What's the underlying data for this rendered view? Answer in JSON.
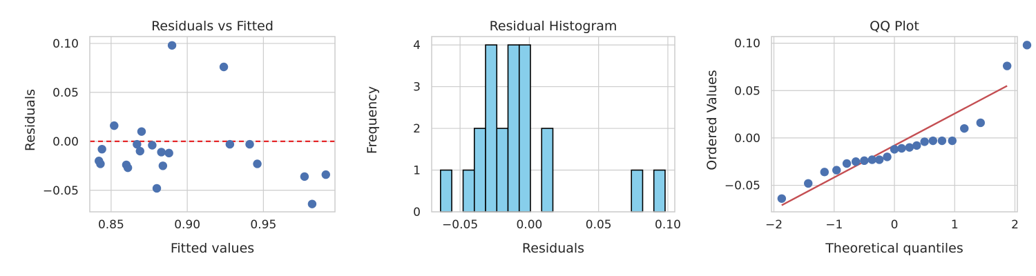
{
  "chart_data": [
    {
      "type": "scatter",
      "title": "Residuals vs Fitted",
      "xlabel": "Fitted values",
      "ylabel": "Residuals",
      "xlim": [
        0.836,
        0.997
      ],
      "ylim": [
        -0.072,
        0.107
      ],
      "xticks": [
        0.85,
        0.9,
        0.95
      ],
      "xtick_labels": [
        "0.85",
        "0.90",
        "0.95"
      ],
      "yticks": [
        -0.05,
        0.0,
        0.05,
        0.1
      ],
      "ytick_labels": [
        "−0.05",
        "0.00",
        "0.05",
        "0.10"
      ],
      "grid": true,
      "point_color": "#4c72b0",
      "reference_line": {
        "y": 0,
        "color": "#e31a1c",
        "style": "dashed"
      },
      "points": [
        {
          "x": 0.842,
          "y": -0.02
        },
        {
          "x": 0.843,
          "y": -0.023
        },
        {
          "x": 0.844,
          "y": -0.008
        },
        {
          "x": 0.852,
          "y": 0.016
        },
        {
          "x": 0.86,
          "y": -0.024
        },
        {
          "x": 0.861,
          "y": -0.027
        },
        {
          "x": 0.867,
          "y": -0.003
        },
        {
          "x": 0.869,
          "y": -0.01
        },
        {
          "x": 0.87,
          "y": 0.01
        },
        {
          "x": 0.877,
          "y": -0.004
        },
        {
          "x": 0.88,
          "y": -0.048
        },
        {
          "x": 0.883,
          "y": -0.011
        },
        {
          "x": 0.884,
          "y": -0.025
        },
        {
          "x": 0.888,
          "y": -0.012
        },
        {
          "x": 0.89,
          "y": 0.098
        },
        {
          "x": 0.924,
          "y": 0.076
        },
        {
          "x": 0.928,
          "y": -0.003
        },
        {
          "x": 0.941,
          "y": -0.003
        },
        {
          "x": 0.946,
          "y": -0.023
        },
        {
          "x": 0.977,
          "y": -0.036
        },
        {
          "x": 0.982,
          "y": -0.064
        },
        {
          "x": 0.991,
          "y": -0.034
        }
      ]
    },
    {
      "type": "bar",
      "title": "Residual Histogram",
      "xlabel": "Residuals",
      "ylabel": "Frequency",
      "xlim": [
        -0.0705,
        0.105
      ],
      "ylim": [
        0,
        4.2
      ],
      "xticks": [
        -0.05,
        0.0,
        0.05,
        0.1
      ],
      "xtick_labels": [
        "−0.05",
        "0.00",
        "0.05",
        "0.10"
      ],
      "yticks": [
        0,
        1,
        2,
        3,
        4
      ],
      "ytick_labels": [
        "0",
        "1",
        "2",
        "3",
        "4"
      ],
      "grid": true,
      "bar_color": "#87ceeb",
      "edge_color": "#000000",
      "bins": [
        {
          "start": -0.0641,
          "end": -0.056,
          "count": 1
        },
        {
          "start": -0.056,
          "end": -0.0478,
          "count": 0
        },
        {
          "start": -0.0478,
          "end": -0.0397,
          "count": 1
        },
        {
          "start": -0.0397,
          "end": -0.0316,
          "count": 2
        },
        {
          "start": -0.0316,
          "end": -0.0235,
          "count": 4
        },
        {
          "start": -0.0235,
          "end": -0.0154,
          "count": 2
        },
        {
          "start": -0.0154,
          "end": -0.0073,
          "count": 4
        },
        {
          "start": -0.0073,
          "end": 0.0008,
          "count": 4
        },
        {
          "start": 0.0008,
          "end": 0.0089,
          "count": 0
        },
        {
          "start": 0.0089,
          "end": 0.017,
          "count": 2
        },
        {
          "start": 0.017,
          "end": 0.0251,
          "count": 0
        },
        {
          "start": 0.0251,
          "end": 0.0332,
          "count": 0
        },
        {
          "start": 0.0332,
          "end": 0.0413,
          "count": 0
        },
        {
          "start": 0.0413,
          "end": 0.0494,
          "count": 0
        },
        {
          "start": 0.0494,
          "end": 0.0575,
          "count": 0
        },
        {
          "start": 0.0575,
          "end": 0.0656,
          "count": 0
        },
        {
          "start": 0.0656,
          "end": 0.0737,
          "count": 0
        },
        {
          "start": 0.0737,
          "end": 0.0818,
          "count": 1
        },
        {
          "start": 0.0818,
          "end": 0.0899,
          "count": 0
        },
        {
          "start": 0.0899,
          "end": 0.098,
          "count": 1
        }
      ]
    },
    {
      "type": "scatter",
      "title": "QQ Plot",
      "xlabel": "Theoretical quantiles",
      "ylabel": "Ordered Values",
      "xlim": [
        -2.04,
        2.04
      ],
      "ylim": [
        -0.078,
        0.107
      ],
      "xticks": [
        -2,
        -1,
        0,
        1,
        2
      ],
      "xtick_labels": [
        "−2",
        "−1",
        "0",
        "1",
        "2"
      ],
      "yticks": [
        -0.05,
        0.0,
        0.05,
        0.1
      ],
      "ytick_labels": [
        "−0.05",
        "0.00",
        "0.05",
        "0.10"
      ],
      "grid": true,
      "point_color": "#4c72b0",
      "fit_line": {
        "x": [
          -1.87,
          1.87
        ],
        "y": [
          -0.071,
          0.055
        ],
        "color": "#c44e52"
      },
      "points": [
        {
          "x": -1.87,
          "y": -0.064
        },
        {
          "x": -1.43,
          "y": -0.048
        },
        {
          "x": -1.16,
          "y": -0.036
        },
        {
          "x": -0.96,
          "y": -0.034
        },
        {
          "x": -0.79,
          "y": -0.027
        },
        {
          "x": -0.64,
          "y": -0.025
        },
        {
          "x": -0.5,
          "y": -0.024
        },
        {
          "x": -0.37,
          "y": -0.023
        },
        {
          "x": -0.25,
          "y": -0.023
        },
        {
          "x": -0.12,
          "y": -0.02
        },
        {
          "x": 0.0,
          "y": -0.012
        },
        {
          "x": 0.12,
          "y": -0.011
        },
        {
          "x": 0.25,
          "y": -0.01
        },
        {
          "x": 0.37,
          "y": -0.008
        },
        {
          "x": 0.5,
          "y": -0.004
        },
        {
          "x": 0.64,
          "y": -0.003
        },
        {
          "x": 0.79,
          "y": -0.003
        },
        {
          "x": 0.96,
          "y": -0.003
        },
        {
          "x": 1.16,
          "y": 0.01
        },
        {
          "x": 1.43,
          "y": 0.016
        },
        {
          "x": 1.87,
          "y": 0.076
        },
        {
          "x": 2.2,
          "y": 0.098
        }
      ]
    }
  ]
}
